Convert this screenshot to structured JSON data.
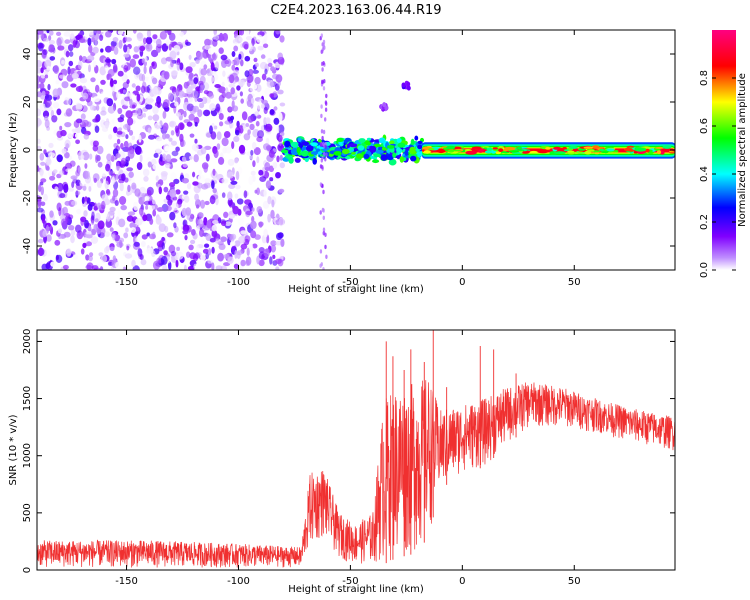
{
  "figure": {
    "title": "C2E4.2023.163.06.44.R19"
  },
  "chart_data": [
    {
      "type": "heatmap",
      "xlabel": "Height of straight line (km)",
      "ylabel": "Frequency (Hz)",
      "xlim": [
        -190,
        95
      ],
      "ylim": [
        -50,
        50
      ],
      "xticks": [
        -150,
        -100,
        -50,
        0,
        50
      ],
      "yticks": [
        -40,
        -20,
        0,
        20,
        40
      ],
      "grid": false,
      "colorbar": {
        "label": "Normalized spectral amplitude",
        "range": [
          0.0,
          1.0
        ],
        "ticks": [
          0.0,
          0.2,
          0.4,
          0.6,
          0.8
        ],
        "tick_labels": [
          "0.0",
          "0.2",
          "0.4",
          "0.6",
          "0.8"
        ],
        "colors": [
          "#ffffff",
          "#8000ff",
          "#0000ff",
          "#00ffff",
          "#00ff00",
          "#ffff00",
          "#ff0000",
          "#ff0080"
        ]
      },
      "regions": [
        {
          "x": [
            -190,
            -80
          ],
          "freq": [
            -50,
            50
          ],
          "amplitude": [
            0.0,
            0.2
          ],
          "pattern": "scattered noise"
        },
        {
          "x": [
            -80,
            -18
          ],
          "freq": [
            -5,
            5
          ],
          "amplitude": [
            0.2,
            0.6
          ],
          "pattern": "broken band"
        },
        {
          "x": [
            -18,
            95
          ],
          "freq": [
            -3,
            3
          ],
          "amplitude": [
            0.4,
            0.95
          ],
          "pattern": "steady band centered near 0 Hz"
        }
      ],
      "features": [
        {
          "x": -25,
          "freq": 27,
          "amplitude": 0.15
        },
        {
          "x": -35,
          "freq": 18,
          "amplitude": 0.1
        },
        {
          "x": -62,
          "freq": 0,
          "amplitude": 0.1,
          "note": "vertical streak across frequencies"
        }
      ]
    },
    {
      "type": "line",
      "xlabel": "Height of straight line (km)",
      "ylabel": "SNR (10 * v/v)",
      "xlim": [
        -190,
        95
      ],
      "ylim": [
        0,
        2100
      ],
      "xticks": [
        -150,
        -100,
        -50,
        0,
        50
      ],
      "yticks": [
        0,
        500,
        1000,
        1500,
        2000
      ],
      "grid": false,
      "color": "#f03030",
      "envelope": [
        {
          "x": -190,
          "low": 20,
          "high": 260
        },
        {
          "x": -140,
          "low": 20,
          "high": 260
        },
        {
          "x": -100,
          "low": 20,
          "high": 230
        },
        {
          "x": -72,
          "low": 20,
          "high": 200
        },
        {
          "x": -68,
          "low": 200,
          "high": 850
        },
        {
          "x": -62,
          "low": 280,
          "high": 900
        },
        {
          "x": -55,
          "low": 100,
          "high": 500
        },
        {
          "x": -48,
          "low": 50,
          "high": 400
        },
        {
          "x": -40,
          "low": 50,
          "high": 500
        },
        {
          "x": -35,
          "low": 50,
          "high": 1500
        },
        {
          "x": -30,
          "low": 100,
          "high": 1600
        },
        {
          "x": -20,
          "low": 150,
          "high": 1650
        },
        {
          "x": -15,
          "low": 300,
          "high": 1700
        },
        {
          "x": -10,
          "low": 700,
          "high": 1400
        },
        {
          "x": 0,
          "low": 850,
          "high": 1450
        },
        {
          "x": 10,
          "low": 900,
          "high": 1500
        },
        {
          "x": 20,
          "low": 1100,
          "high": 1600
        },
        {
          "x": 30,
          "low": 1250,
          "high": 1650
        },
        {
          "x": 45,
          "low": 1250,
          "high": 1600
        },
        {
          "x": 60,
          "low": 1200,
          "high": 1500
        },
        {
          "x": 75,
          "low": 1120,
          "high": 1420
        },
        {
          "x": 90,
          "low": 1060,
          "high": 1360
        },
        {
          "x": 95,
          "low": 1040,
          "high": 1340
        }
      ],
      "spikes": [
        {
          "x": -34,
          "value": 2000
        },
        {
          "x": -31,
          "value": 1870
        },
        {
          "x": -26,
          "value": 1750
        },
        {
          "x": -23,
          "value": 1930
        },
        {
          "x": -17,
          "value": 1820
        },
        {
          "x": -13,
          "value": 2100
        },
        {
          "x": -7,
          "value": 1600
        },
        {
          "x": 8,
          "value": 1960
        },
        {
          "x": 14,
          "value": 1930
        },
        {
          "x": 24,
          "value": 1720
        }
      ]
    }
  ]
}
